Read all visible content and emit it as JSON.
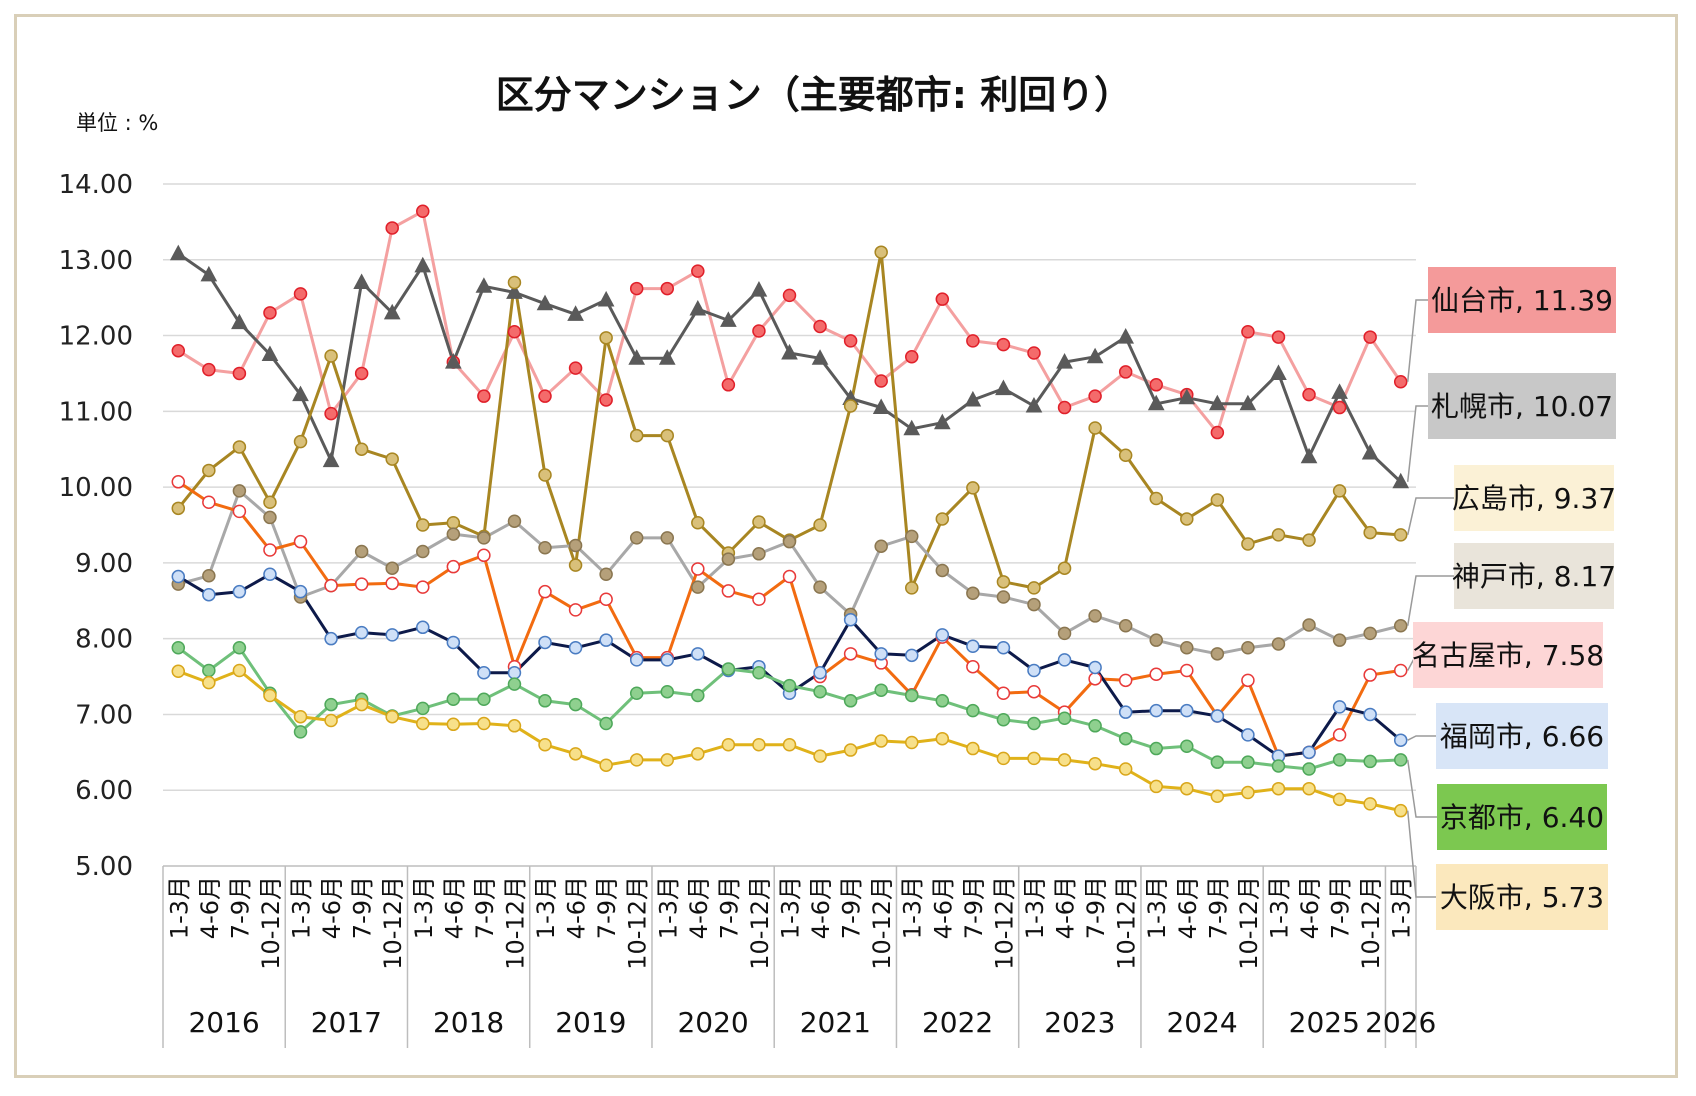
{
  "chart_data": {
    "type": "line",
    "title": "区分マンション（主要都市: 利回り）",
    "unit_label": "単位 : %",
    "ylim": [
      5,
      14
    ],
    "yticks": [
      "14.00",
      "13.00",
      "12.00",
      "11.00",
      "10.00",
      "9.00",
      "8.00",
      "7.00",
      "6.00",
      "5.00"
    ],
    "quarter_labels": [
      "1-3月",
      "4-6月",
      "7-9月",
      "10-12月"
    ],
    "years": [
      {
        "label": "2016",
        "quarters": 4
      },
      {
        "label": "2017",
        "quarters": 4
      },
      {
        "label": "2018",
        "quarters": 4
      },
      {
        "label": "2019",
        "quarters": 4
      },
      {
        "label": "2020",
        "quarters": 4
      },
      {
        "label": "2021",
        "quarters": 4
      },
      {
        "label": "2022",
        "quarters": 4
      },
      {
        "label": "2023",
        "quarters": 4
      },
      {
        "label": "2024",
        "quarters": 4
      },
      {
        "label": "2025",
        "quarters": 4
      },
      {
        "label": "2026",
        "quarters": 1
      }
    ],
    "series": [
      {
        "name": "仙台市",
        "label": "仙台市, 11.39",
        "line_color": "#f4a0a0",
        "marker_fill": "#f46b6b",
        "marker_stroke": "#e0202a",
        "marker": "circle",
        "label_bg": "#f49a9a",
        "values": [
          11.8,
          11.55,
          11.5,
          12.3,
          12.55,
          10.97,
          11.5,
          13.42,
          13.64,
          11.65,
          11.2,
          12.05,
          11.2,
          11.57,
          11.15,
          12.62,
          12.62,
          12.85,
          11.35,
          12.06,
          12.53,
          12.12,
          11.93,
          11.4,
          11.72,
          12.48,
          11.93,
          11.88,
          11.77,
          11.05,
          11.2,
          11.52,
          11.35,
          11.22,
          10.72,
          12.05,
          11.98,
          11.22,
          11.05,
          11.98,
          11.39
        ]
      },
      {
        "name": "札幌市",
        "label": "札幌市, 10.07",
        "line_color": "#5a5a5a",
        "marker_fill": "#5a5a5a",
        "marker_stroke": "#5a5a5a",
        "marker": "triangle",
        "label_bg": "#c8c8c8",
        "values": [
          13.08,
          12.8,
          12.17,
          11.75,
          11.22,
          10.35,
          12.7,
          12.3,
          12.92,
          11.65,
          12.65,
          12.57,
          12.42,
          12.28,
          12.47,
          11.7,
          11.7,
          12.35,
          12.2,
          12.6,
          11.77,
          11.7,
          11.17,
          11.05,
          10.77,
          10.85,
          11.15,
          11.3,
          11.07,
          11.65,
          11.72,
          11.98,
          11.1,
          11.18,
          11.1,
          11.1,
          11.5,
          10.4,
          11.25,
          10.45,
          10.07
        ]
      },
      {
        "name": "広島市",
        "label": "広島市, 9.37",
        "line_color": "#a88622",
        "marker_fill": "#d9c07a",
        "marker_stroke": "#a88622",
        "marker": "circle",
        "label_bg": "#fbf1d6",
        "values": [
          9.72,
          10.22,
          10.53,
          9.8,
          10.6,
          11.73,
          10.5,
          10.37,
          9.5,
          9.53,
          9.35,
          12.7,
          10.16,
          8.97,
          11.97,
          10.68,
          10.68,
          9.53,
          9.13,
          9.54,
          9.3,
          9.5,
          11.07,
          13.1,
          8.67,
          9.58,
          9.99,
          8.75,
          8.67,
          8.93,
          10.78,
          10.42,
          9.85,
          9.58,
          9.83,
          9.25,
          9.37,
          9.3,
          9.95,
          9.4,
          9.37
        ]
      },
      {
        "name": "神戸市",
        "label": "神戸市, 8.17",
        "line_color": "#a8a8a8",
        "marker_fill": "#b5a07a",
        "marker_stroke": "#8a7650",
        "marker": "circle",
        "label_bg": "#e9e4da",
        "values": [
          8.72,
          8.83,
          9.95,
          9.6,
          8.55,
          8.7,
          9.15,
          8.93,
          9.15,
          9.38,
          9.33,
          9.55,
          9.2,
          9.23,
          8.85,
          9.33,
          9.33,
          8.68,
          9.05,
          9.12,
          9.28,
          8.68,
          8.32,
          9.22,
          9.35,
          8.9,
          8.6,
          8.55,
          8.45,
          8.07,
          8.3,
          8.17,
          7.98,
          7.88,
          7.8,
          7.88,
          7.93,
          8.18,
          7.98,
          8.07,
          8.17
        ]
      },
      {
        "name": "名古屋市",
        "label": "名古屋市, 7.58",
        "line_color": "#f26b10",
        "marker_fill": "#ffffff",
        "marker_stroke": "#e83a3a",
        "marker": "circle",
        "label_bg": "#fdd6d6",
        "values": [
          10.07,
          9.8,
          9.68,
          9.17,
          9.28,
          8.7,
          8.72,
          8.73,
          8.68,
          8.95,
          9.1,
          7.63,
          8.62,
          8.38,
          8.52,
          7.75,
          7.75,
          8.92,
          8.63,
          8.52,
          8.82,
          7.5,
          7.8,
          7.68,
          7.26,
          8.02,
          7.63,
          7.28,
          7.3,
          7.03,
          7.47,
          7.45,
          7.53,
          7.58,
          6.98,
          7.45,
          6.45,
          6.5,
          6.73,
          7.52,
          7.58
        ]
      },
      {
        "name": "福岡市",
        "label": "福岡市, 6.66",
        "line_color": "#0d1a4a",
        "marker_fill": "#cfe0f7",
        "marker_stroke": "#4a7cc2",
        "marker": "circle",
        "label_bg": "#d8e5f7",
        "values": [
          8.82,
          8.58,
          8.62,
          8.85,
          8.62,
          8.0,
          8.08,
          8.05,
          8.15,
          7.95,
          7.55,
          7.55,
          7.95,
          7.88,
          7.98,
          7.72,
          7.72,
          7.8,
          7.58,
          7.63,
          7.28,
          7.55,
          8.25,
          7.8,
          7.78,
          8.05,
          7.9,
          7.88,
          7.58,
          7.72,
          7.62,
          7.03,
          7.05,
          7.05,
          6.98,
          6.73,
          6.45,
          6.5,
          7.1,
          7.0,
          6.66
        ]
      },
      {
        "name": "京都市",
        "label": "京都市, 6.40",
        "line_color": "#6fc07a",
        "marker_fill": "#8fd08f",
        "marker_stroke": "#4ea85a",
        "marker": "circle",
        "label_bg": "#7cc850",
        "values": [
          7.88,
          7.58,
          7.88,
          7.28,
          6.77,
          7.13,
          7.2,
          6.98,
          7.08,
          7.2,
          7.2,
          7.4,
          7.18,
          7.13,
          6.88,
          7.28,
          7.3,
          7.25,
          7.6,
          7.55,
          7.38,
          7.3,
          7.18,
          7.32,
          7.25,
          7.18,
          7.05,
          6.93,
          6.88,
          6.95,
          6.85,
          6.68,
          6.55,
          6.58,
          6.37,
          6.37,
          6.32,
          6.28,
          6.4,
          6.38,
          6.4
        ]
      },
      {
        "name": "大阪市",
        "label": "大阪市, 5.73",
        "line_color": "#e0b21a",
        "marker_fill": "#f7e08a",
        "marker_stroke": "#d9a61a",
        "marker": "circle",
        "label_bg": "#fbe8bd",
        "values": [
          7.57,
          7.42,
          7.58,
          7.25,
          6.97,
          6.92,
          7.13,
          6.97,
          6.88,
          6.87,
          6.88,
          6.85,
          6.6,
          6.48,
          6.33,
          6.4,
          6.4,
          6.48,
          6.6,
          6.6,
          6.6,
          6.45,
          6.53,
          6.65,
          6.63,
          6.68,
          6.55,
          6.42,
          6.42,
          6.4,
          6.35,
          6.28,
          6.05,
          6.02,
          5.92,
          5.97,
          6.02,
          6.02,
          5.88,
          5.82,
          5.73
        ]
      }
    ]
  }
}
